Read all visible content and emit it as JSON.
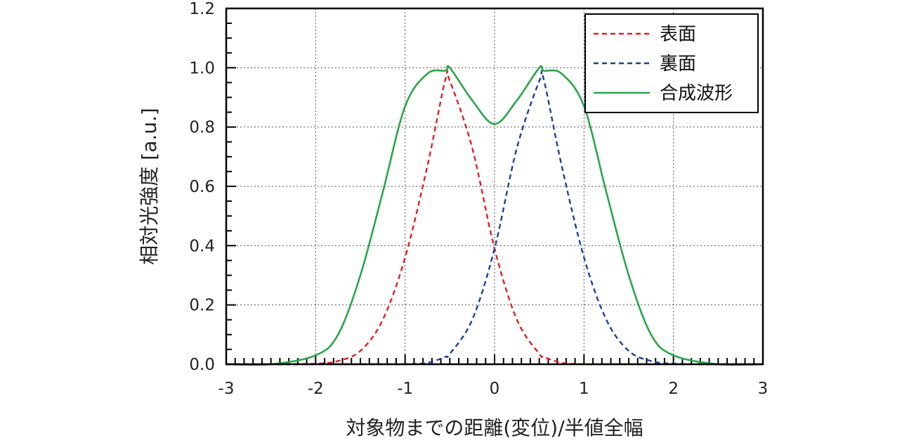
{
  "chart_data": {
    "type": "line",
    "xlabel": "対象物までの距離(変位)/半値全幅",
    "ylabel": "相対光強度 [a.u.]",
    "xlim": [
      -3,
      3
    ],
    "ylim": [
      0,
      1.2
    ],
    "xticks": [
      -3,
      -2,
      -1,
      0,
      1,
      2,
      3
    ],
    "xtick_labels": [
      "-3",
      "-2",
      "-1",
      "0",
      "1",
      "2",
      "3"
    ],
    "yticks": [
      0.0,
      0.2,
      0.4,
      0.6,
      0.8,
      1.0,
      1.2
    ],
    "ytick_labels": [
      "0.0",
      "0.2",
      "0.4",
      "0.6",
      "0.8",
      "1.0",
      "1.2"
    ],
    "grid": true,
    "legend_position": "top-right",
    "x": [
      -3.0,
      -2.5,
      -2.0,
      -1.75,
      -1.5,
      -1.25,
      -1.0,
      -0.75,
      -0.55,
      -0.5,
      -0.25,
      0.0,
      0.25,
      0.5,
      0.55,
      0.75,
      1.0,
      1.25,
      1.5,
      1.75,
      2.0,
      2.5,
      3.0
    ],
    "series": [
      {
        "name": "表面",
        "color": "#e02020",
        "style": "dashed",
        "values": [
          0.0,
          0.0,
          0.002,
          0.011,
          0.045,
          0.15,
          0.36,
          0.67,
          0.96,
          0.955,
          0.73,
          0.39,
          0.15,
          0.035,
          0.025,
          0.005,
          0.0,
          0.0,
          0.0,
          0.0,
          0.0,
          0.0,
          0.0
        ]
      },
      {
        "name": "裏面",
        "color": "#1a3fa0",
        "style": "dashed",
        "values": [
          0.0,
          0.0,
          0.0,
          0.0,
          0.0,
          0.0,
          0.0,
          0.005,
          0.025,
          0.035,
          0.15,
          0.39,
          0.73,
          0.955,
          0.96,
          0.67,
          0.36,
          0.15,
          0.045,
          0.011,
          0.002,
          0.0,
          0.0
        ]
      },
      {
        "name": "合成波形",
        "color": "#2aa64a",
        "style": "solid",
        "values": [
          0.0,
          0.0,
          0.03,
          0.1,
          0.3,
          0.58,
          0.87,
          0.98,
          0.99,
          1.0,
          0.89,
          0.81,
          0.89,
          1.0,
          0.99,
          0.98,
          0.87,
          0.58,
          0.3,
          0.1,
          0.03,
          0.0,
          0.0
        ]
      }
    ]
  }
}
